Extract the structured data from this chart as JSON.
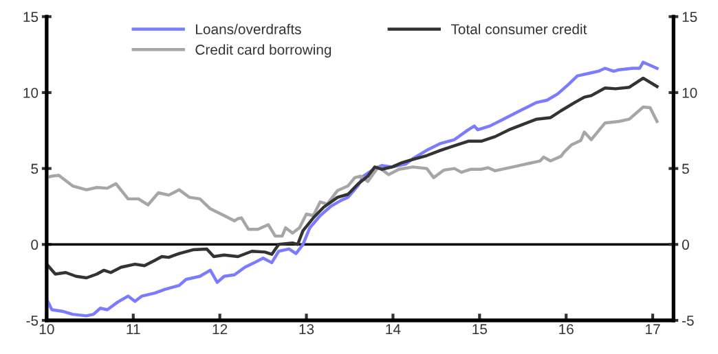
{
  "chart_data": {
    "type": "line",
    "xlim": [
      10,
      17.24
    ],
    "xticks": [
      10,
      11,
      12,
      13,
      14,
      15,
      16,
      17
    ],
    "ylim": [
      -5,
      15
    ],
    "yticks": [
      -5,
      0,
      5,
      10,
      15
    ],
    "y2lim": [
      -5,
      15
    ],
    "y2ticks": [
      -5,
      0,
      5,
      10,
      15
    ],
    "grid": false,
    "legend": "top",
    "line_style": "solid",
    "marker": "none",
    "ref_lines": [
      {
        "axis": "y",
        "value": 0,
        "color": "#000000"
      }
    ],
    "series": [
      {
        "name": "Loans/overdrafts",
        "color": "#7b7bff",
        "x": [
          10,
          10.06,
          10.18,
          10.3,
          10.46,
          10.54,
          10.62,
          10.7,
          10.82,
          10.94,
          11.02,
          11.1,
          11.25,
          11.37,
          11.53,
          11.61,
          11.77,
          11.89,
          11.97,
          12.05,
          12.17,
          12.29,
          12.4,
          12.5,
          12.6,
          12.68,
          12.8,
          12.88,
          12.96,
          13.04,
          13.16,
          13.28,
          13.4,
          13.48,
          13.6,
          13.66,
          13.79,
          13.87,
          13.99,
          14.15,
          14.23,
          14.39,
          14.55,
          14.71,
          14.87,
          14.94,
          14.98,
          15.12,
          15.26,
          15.38,
          15.5,
          15.66,
          15.78,
          15.9,
          16.02,
          16.13,
          16.25,
          16.37,
          16.45,
          16.55,
          16.61,
          16.77,
          16.85,
          16.89,
          17.05
        ],
        "values": [
          -3.6,
          -4.3,
          -4.4,
          -4.6,
          -4.7,
          -4.6,
          -4.2,
          -4.3,
          -3.8,
          -3.4,
          -3.75,
          -3.4,
          -3.2,
          -2.95,
          -2.7,
          -2.3,
          -2.1,
          -1.7,
          -2.5,
          -2.1,
          -2.0,
          -1.5,
          -1.2,
          -0.9,
          -1.2,
          -0.45,
          -0.3,
          -0.6,
          0.0,
          1.1,
          1.9,
          2.5,
          2.9,
          3.1,
          3.9,
          4.5,
          5.0,
          5.2,
          5.1,
          5.3,
          5.65,
          6.2,
          6.65,
          6.9,
          7.55,
          7.8,
          7.55,
          7.8,
          8.2,
          8.55,
          8.9,
          9.35,
          9.5,
          9.9,
          10.5,
          11.1,
          11.25,
          11.4,
          11.6,
          11.4,
          11.5,
          11.6,
          11.6,
          12.0,
          11.6
        ]
      },
      {
        "name": "Credit card borrowing",
        "color": "#a6a6a6",
        "x": [
          10,
          10.06,
          10.14,
          10.3,
          10.46,
          10.58,
          10.7,
          10.8,
          10.94,
          11.06,
          11.17,
          11.29,
          11.41,
          11.53,
          11.65,
          11.77,
          11.89,
          12.05,
          12.17,
          12.21,
          12.25,
          12.33,
          12.44,
          12.56,
          12.64,
          12.72,
          12.76,
          12.84,
          12.92,
          13.0,
          13.08,
          13.16,
          13.24,
          13.36,
          13.48,
          13.56,
          13.63,
          13.71,
          13.83,
          13.95,
          14.07,
          14.23,
          14.39,
          14.47,
          14.59,
          14.71,
          14.79,
          14.9,
          15.02,
          15.1,
          15.18,
          15.3,
          15.42,
          15.54,
          15.7,
          15.74,
          15.82,
          15.94,
          15.98,
          16.06,
          16.17,
          16.21,
          16.29,
          16.45,
          16.61,
          16.73,
          16.89,
          16.97,
          17.05
        ],
        "values": [
          4.4,
          4.5,
          4.55,
          3.85,
          3.6,
          3.75,
          3.7,
          4.0,
          3.0,
          3.0,
          2.6,
          3.4,
          3.25,
          3.6,
          3.1,
          3.0,
          2.35,
          1.9,
          1.55,
          1.7,
          1.75,
          1.0,
          1.0,
          1.3,
          0.55,
          0.55,
          1.1,
          0.75,
          1.1,
          2.0,
          1.9,
          2.8,
          2.65,
          3.55,
          3.85,
          4.4,
          4.5,
          4.15,
          5.1,
          4.6,
          4.95,
          5.1,
          5.0,
          4.4,
          4.9,
          5.0,
          4.75,
          4.95,
          4.95,
          5.05,
          4.85,
          5.0,
          5.15,
          5.3,
          5.5,
          5.75,
          5.5,
          5.8,
          6.1,
          6.55,
          6.85,
          7.4,
          6.9,
          8.0,
          8.1,
          8.25,
          9.05,
          9.0,
          8.1
        ]
      },
      {
        "name": "Total consumer credit",
        "color": "#333333",
        "x": [
          10,
          10.1,
          10.22,
          10.34,
          10.46,
          10.58,
          10.66,
          10.74,
          10.86,
          11.02,
          11.13,
          11.25,
          11.33,
          11.41,
          11.53,
          11.69,
          11.85,
          11.93,
          12.05,
          12.21,
          12.37,
          12.52,
          12.6,
          12.68,
          12.84,
          12.9,
          12.96,
          13.08,
          13.2,
          13.36,
          13.48,
          13.6,
          13.71,
          13.79,
          13.87,
          13.99,
          14.11,
          14.23,
          14.39,
          14.55,
          14.71,
          14.87,
          15.02,
          15.18,
          15.34,
          15.5,
          15.66,
          15.82,
          15.94,
          16.1,
          16.21,
          16.29,
          16.45,
          16.57,
          16.73,
          16.89,
          17.05
        ],
        "values": [
          -1.3,
          -1.95,
          -1.85,
          -2.1,
          -2.2,
          -1.95,
          -1.7,
          -1.85,
          -1.5,
          -1.3,
          -1.4,
          -1.05,
          -0.8,
          -0.85,
          -0.6,
          -0.35,
          -0.3,
          -0.8,
          -0.7,
          -0.8,
          -0.45,
          -0.5,
          -0.65,
          0.0,
          0.1,
          0.0,
          0.9,
          1.75,
          2.45,
          3.1,
          3.3,
          4.0,
          4.5,
          5.1,
          4.95,
          5.1,
          5.4,
          5.6,
          5.85,
          6.2,
          6.5,
          6.8,
          6.8,
          7.1,
          7.55,
          7.9,
          8.25,
          8.35,
          8.8,
          9.35,
          9.7,
          9.8,
          10.3,
          10.25,
          10.35,
          10.95,
          10.4
        ]
      }
    ]
  }
}
